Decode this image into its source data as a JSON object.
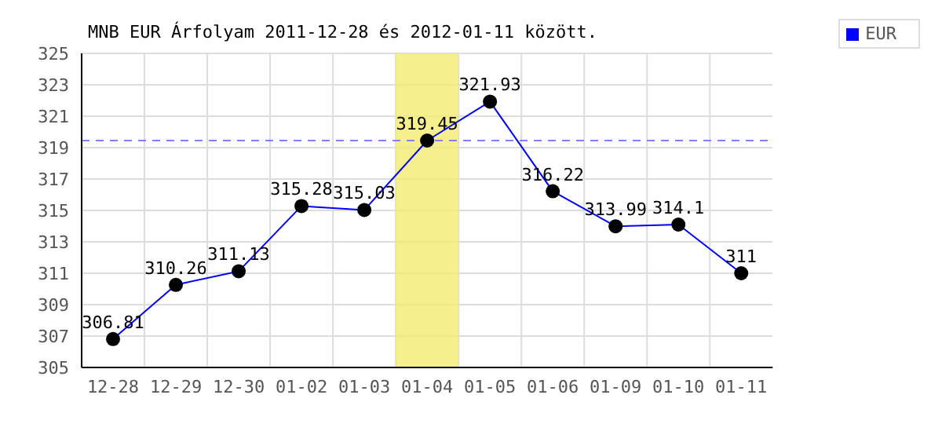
{
  "chart_data": {
    "type": "line",
    "title": "MNB EUR Árfolyam 2011-12-28 és 2012-01-11 között.",
    "categories": [
      "12-28",
      "12-29",
      "12-30",
      "01-02",
      "01-03",
      "01-04",
      "01-05",
      "01-06",
      "01-09",
      "01-10",
      "01-11"
    ],
    "series": [
      {
        "name": "EUR",
        "color": "#0000ff",
        "values": [
          306.81,
          310.26,
          311.13,
          315.28,
          315.03,
          319.45,
          321.93,
          316.22,
          313.99,
          314.1,
          311
        ]
      }
    ],
    "ylim": [
      305,
      325
    ],
    "yticks": [
      305,
      307,
      309,
      311,
      313,
      315,
      317,
      319,
      321,
      323,
      325
    ],
    "ref_lines": [
      {
        "axis": "y",
        "value": 319.45,
        "color": "#8080ff",
        "line_style": "dashed"
      }
    ],
    "bands": [
      {
        "axis": "x",
        "from": "01-04",
        "to": "01-04",
        "color": "#f2ec70"
      }
    ],
    "grid": true,
    "legend": "top right",
    "marker": "circle",
    "line_style": "solid",
    "data_labels": true
  }
}
